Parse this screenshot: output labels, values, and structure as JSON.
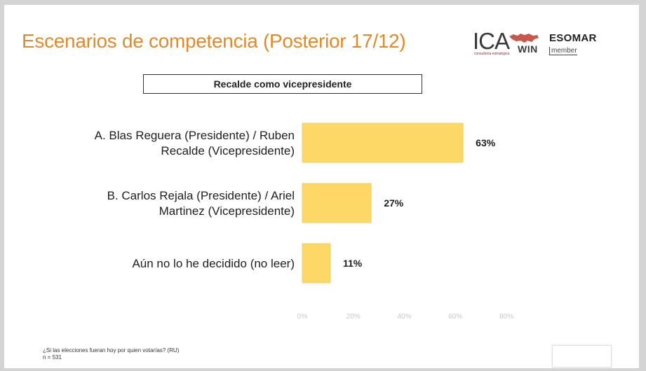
{
  "header": {
    "title": "Escenarios de competencia (Posterior 17/12)",
    "logo_ica": "ICA",
    "logo_ica_sub": "consultoría estratégica",
    "logo_win": "WIN",
    "logo_esomar": "ESOMAR",
    "logo_esomar_sub": "member"
  },
  "chart_data": {
    "type": "bar",
    "orientation": "horizontal",
    "title": "Recalde como vicepresidente",
    "categories": [
      [
        "A. Blas Reguera (Presidente) / Ruben",
        "Recalde (Vicepresidente)"
      ],
      [
        "B. Carlos Rejala (Presidente) / Ariel",
        "Martinez (Vicepresidente)"
      ],
      [
        "Aún no lo he decidido (no leer)"
      ]
    ],
    "values": [
      63,
      27,
      11
    ],
    "value_labels": [
      "63%",
      "27%",
      "11%"
    ],
    "xlim": [
      0,
      80
    ],
    "ticks": [
      0,
      20,
      40,
      60,
      80
    ],
    "tick_labels": [
      "0%",
      "20%",
      "40%",
      "60%",
      "80%"
    ],
    "bar_color": "#fdd867",
    "grid": false,
    "legend": "none"
  },
  "footnote": {
    "question": "¿Si las elecciones fueran hoy por quien votarías? (RU)",
    "sample": "n = 531"
  }
}
